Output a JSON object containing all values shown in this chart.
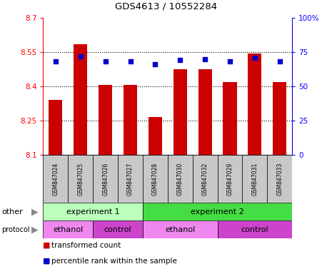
{
  "title": "GDS4613 / 10552284",
  "samples": [
    "GSM847024",
    "GSM847025",
    "GSM847026",
    "GSM847027",
    "GSM847028",
    "GSM847030",
    "GSM847032",
    "GSM847029",
    "GSM847031",
    "GSM847033"
  ],
  "bar_values": [
    8.34,
    8.585,
    8.405,
    8.405,
    8.265,
    8.475,
    8.475,
    8.42,
    8.545,
    8.42
  ],
  "percentile_values": [
    68,
    72,
    68,
    68,
    66,
    69,
    70,
    68,
    71,
    68
  ],
  "ylim_left": [
    8.1,
    8.7
  ],
  "ylim_right": [
    0,
    100
  ],
  "yticks_left": [
    8.1,
    8.25,
    8.4,
    8.55,
    8.7
  ],
  "yticks_right": [
    0,
    25,
    50,
    75,
    100
  ],
  "bar_color": "#cc0000",
  "percentile_color": "#0000cc",
  "bar_bottom": 8.1,
  "groups_other": [
    {
      "label": "experiment 1",
      "start": 0,
      "end": 4,
      "color": "#bbffbb"
    },
    {
      "label": "experiment 2",
      "start": 4,
      "end": 10,
      "color": "#44dd44"
    }
  ],
  "groups_protocol": [
    {
      "label": "ethanol",
      "start": 0,
      "end": 2,
      "color": "#ee88ee"
    },
    {
      "label": "control",
      "start": 2,
      "end": 4,
      "color": "#cc44cc"
    },
    {
      "label": "ethanol",
      "start": 4,
      "end": 7,
      "color": "#ee88ee"
    },
    {
      "label": "control",
      "start": 7,
      "end": 10,
      "color": "#cc44cc"
    }
  ],
  "legend_items": [
    {
      "label": "transformed count",
      "color": "#cc0000"
    },
    {
      "label": "percentile rank within the sample",
      "color": "#0000cc"
    }
  ],
  "grid_dotted": [
    8.25,
    8.4,
    8.55
  ],
  "sample_box_color": "#c8c8c8",
  "label_arrow_color": "#888888"
}
